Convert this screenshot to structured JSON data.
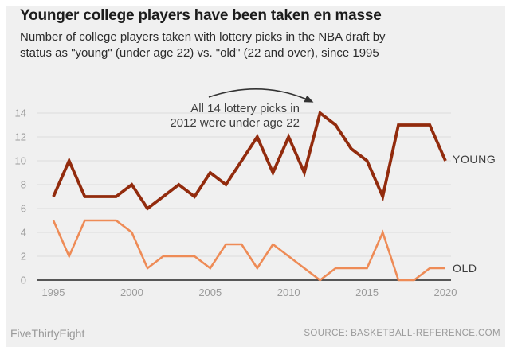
{
  "header": {
    "title": "Younger college players have been taken en masse",
    "subtitle_line1": "Number of college players taken with lottery picks in the NBA draft by",
    "subtitle_line2": "status as \"young\" (under age 22) vs. \"old\" (22 and over), since 1995"
  },
  "annotation": {
    "line1": "All 14 lottery picks in",
    "line2": "2012 were under age 22"
  },
  "chart_data": {
    "type": "line",
    "x": [
      1995,
      1996,
      1997,
      1998,
      1999,
      2000,
      2001,
      2002,
      2003,
      2004,
      2005,
      2006,
      2007,
      2008,
      2009,
      2010,
      2011,
      2012,
      2013,
      2014,
      2015,
      2016,
      2017,
      2018,
      2019,
      2020
    ],
    "series": [
      {
        "name": "YOUNG",
        "color": "#922b0d",
        "stroke_width": 3.8,
        "values": [
          7,
          10,
          7,
          7,
          7,
          8,
          6,
          7,
          8,
          7,
          9,
          8,
          10,
          12,
          9,
          12,
          9,
          14,
          13,
          11,
          10,
          7,
          13,
          13,
          13,
          10
        ]
      },
      {
        "name": "OLD",
        "color": "#ee8b56",
        "stroke_width": 2.6,
        "values": [
          5,
          2,
          5,
          5,
          5,
          4,
          1,
          2,
          2,
          2,
          1,
          3,
          3,
          1,
          3,
          2,
          1,
          0,
          1,
          1,
          1,
          4,
          0,
          0,
          1,
          1
        ]
      }
    ],
    "xticks": [
      1995,
      2000,
      2005,
      2010,
      2015,
      2020
    ],
    "yticks": [
      0,
      2,
      4,
      6,
      8,
      10,
      12,
      14
    ],
    "ylim": [
      0,
      14
    ],
    "grid": true,
    "legend_position": "right of line ends",
    "annotation_target": {
      "year": 2012,
      "value": 14
    }
  },
  "footer": {
    "brand": "FiveThirtyEight",
    "source": "SOURCE: BASKETBALL-REFERENCE.COM"
  },
  "style": {
    "background": "#f0f0f0",
    "grid_color": "#dcdcdc",
    "axis_color": "#222222",
    "tick_color": "#9b9b9b",
    "annotation_arrow_color": "#333333"
  }
}
